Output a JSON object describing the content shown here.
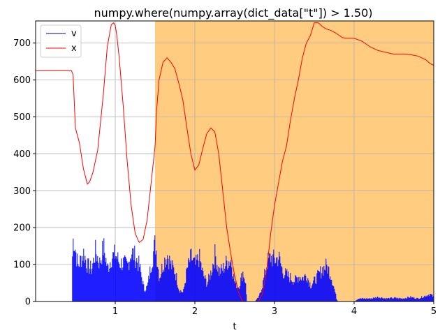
{
  "chart_data": {
    "type": "line",
    "title": "numpy.where(numpy.array(dict_data[\"t\"]) > 1.50)",
    "xlabel": "t",
    "ylabel": "",
    "xlim": [
      0.0,
      5.0
    ],
    "ylim": [
      0,
      760
    ],
    "xticks": [
      1,
      2,
      3,
      4,
      5
    ],
    "yticks": [
      0,
      100,
      200,
      300,
      400,
      500,
      600,
      700
    ],
    "grid": true,
    "legend": {
      "placement": "upper-left",
      "entries": [
        {
          "label": "v",
          "color": "#00008b"
        },
        {
          "label": "x",
          "color": "#ff0000"
        }
      ]
    },
    "highlight": {
      "x_start": 1.5,
      "x_end": 5.0,
      "color": "#ffcc80"
    },
    "series": [
      {
        "name": "x",
        "kind": "line",
        "color": "#ff0000",
        "x": [
          0.0,
          0.45,
          0.47,
          0.5,
          0.55,
          0.6,
          0.65,
          0.68,
          0.72,
          0.78,
          0.85,
          0.9,
          0.95,
          0.98,
          1.0,
          1.02,
          1.05,
          1.1,
          1.15,
          1.2,
          1.25,
          1.3,
          1.35,
          1.4,
          1.45,
          1.5,
          1.52,
          1.55,
          1.6,
          1.65,
          1.7,
          1.75,
          1.8,
          1.85,
          1.9,
          1.95,
          2.0,
          2.05,
          2.1,
          2.15,
          2.2,
          2.25,
          2.3,
          2.35,
          2.4,
          2.45,
          2.5,
          2.55,
          2.6,
          2.63,
          2.65,
          2.7,
          2.75,
          2.8,
          2.85,
          2.9,
          2.95,
          3.0,
          3.05,
          3.1,
          3.15,
          3.2,
          3.25,
          3.3,
          3.35,
          3.4,
          3.45,
          3.5,
          3.55,
          3.6,
          3.65,
          3.7,
          3.75,
          3.8,
          3.85,
          3.9,
          3.95,
          4.0,
          4.1,
          4.2,
          4.3,
          4.4,
          4.5,
          4.6,
          4.7,
          4.8,
          4.9,
          4.95,
          5.0
        ],
        "y": [
          625,
          625,
          615,
          470,
          430,
          360,
          318,
          325,
          350,
          410,
          560,
          690,
          750,
          755,
          748,
          720,
          660,
          530,
          380,
          260,
          185,
          160,
          168,
          220,
          320,
          420,
          520,
          600,
          648,
          660,
          648,
          630,
          590,
          545,
          470,
          400,
          356,
          370,
          415,
          455,
          470,
          460,
          400,
          300,
          200,
          130,
          70,
          25,
          0,
          0,
          0,
          0,
          0,
          0,
          20,
          80,
          180,
          260,
          320,
          380,
          420,
          490,
          550,
          600,
          660,
          700,
          720,
          755,
          755,
          745,
          738,
          735,
          730,
          723,
          715,
          713,
          713,
          713,
          705,
          690,
          680,
          675,
          670,
          670,
          669,
          665,
          655,
          645,
          640
        ]
      },
      {
        "name": "v",
        "kind": "bars",
        "color": "#0000ff",
        "x": [
          0.45,
          0.47,
          0.5,
          0.53,
          0.56,
          0.6,
          0.65,
          0.7,
          0.75,
          0.8,
          0.85,
          0.9,
          0.95,
          1.0,
          1.05,
          1.1,
          1.15,
          1.2,
          1.25,
          1.3,
          1.33,
          1.36,
          1.4,
          1.45,
          1.5,
          1.55,
          1.6,
          1.65,
          1.7,
          1.75,
          1.8,
          1.85,
          1.9,
          1.95,
          2.0,
          2.05,
          2.1,
          2.15,
          2.2,
          2.25,
          2.3,
          2.35,
          2.4,
          2.45,
          2.5,
          2.55,
          2.6,
          2.63,
          2.65,
          2.7,
          2.75,
          2.8,
          2.85,
          2.9,
          2.95,
          3.0,
          3.05,
          3.1,
          3.15,
          3.2,
          3.25,
          3.3,
          3.35,
          3.4,
          3.45,
          3.5,
          3.55,
          3.6,
          3.65,
          3.7,
          3.75,
          3.78,
          3.8,
          3.85,
          3.9,
          3.95,
          4.0,
          4.05,
          4.1,
          4.2,
          4.3,
          4.4,
          4.5,
          4.6,
          4.7,
          4.8,
          4.9,
          4.95,
          5.0
        ],
        "y": [
          100,
          222,
          170,
          120,
          140,
          165,
          120,
          110,
          170,
          130,
          185,
          110,
          150,
          160,
          130,
          130,
          120,
          170,
          150,
          120,
          80,
          40,
          50,
          130,
          200,
          80,
          130,
          160,
          120,
          100,
          40,
          30,
          110,
          150,
          120,
          150,
          90,
          60,
          100,
          160,
          100,
          110,
          135,
          140,
          60,
          50,
          100,
          70,
          0,
          0,
          0,
          15,
          60,
          130,
          150,
          140,
          150,
          100,
          90,
          80,
          70,
          85,
          80,
          90,
          55,
          70,
          90,
          110,
          120,
          95,
          40,
          5,
          0,
          0,
          0,
          0,
          0,
          10,
          10,
          10,
          15,
          10,
          12,
          10,
          15,
          10,
          20,
          25,
          15
        ]
      }
    ]
  }
}
